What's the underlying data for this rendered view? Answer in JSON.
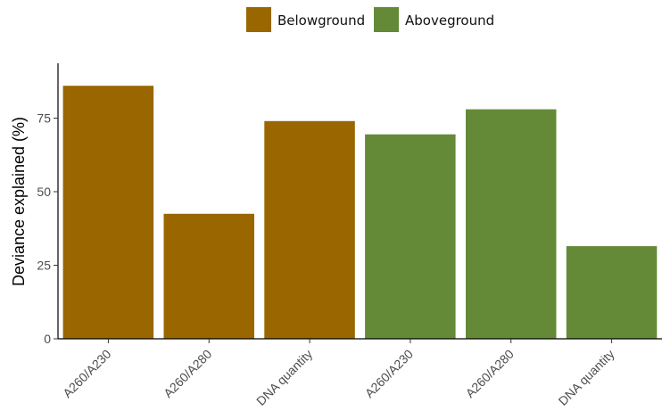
{
  "chart_data": {
    "type": "bar",
    "categories": [
      "A260/A230",
      "A260/A280",
      "DNA quantity",
      "A260/A230",
      "A260/A280",
      "DNA quantity"
    ],
    "values": [
      86,
      42.5,
      74,
      69.5,
      78,
      31.5
    ],
    "groups": [
      "Belowground",
      "Belowground",
      "Belowground",
      "Aboveground",
      "Aboveground",
      "Aboveground"
    ],
    "legend": [
      {
        "name": "Belowground",
        "color": "#996600"
      },
      {
        "name": "Aboveground",
        "color": "#648a38"
      }
    ],
    "ylabel": "Deviance explained (%)",
    "xlabel": "",
    "yticks": [
      0,
      25,
      50,
      75
    ],
    "ylim": [
      0,
      90
    ],
    "legend_position": "top",
    "grid": false
  }
}
